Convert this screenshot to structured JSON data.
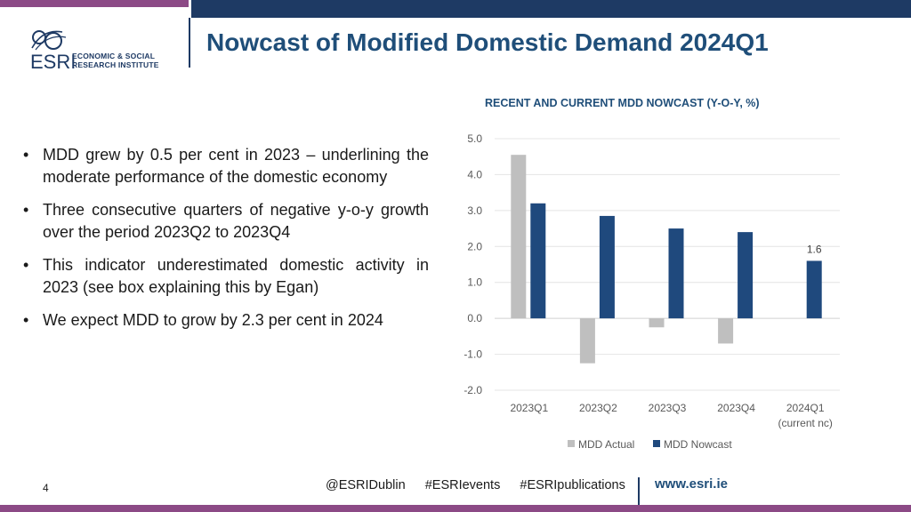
{
  "header": {
    "title": "Nowcast of Modified Domestic Demand 2024Q1",
    "logo_word": "ESRI",
    "logo_sub_1": "ECONOMIC & SOCIAL",
    "logo_sub_2": "RESEARCH INSTITUTE"
  },
  "bullets": [
    "MDD grew by 0.5 per cent in 2023 – underlining the moderate performance of the domestic economy",
    "Three consecutive quarters of negative y-o-y growth over the period 2023Q2 to 2023Q4",
    "This indicator underestimated domestic activity in 2023 (see box explaining this by Egan)",
    "We expect MDD to grow by 2.3 per cent in 2024"
  ],
  "chart_data": {
    "type": "bar",
    "title": "RECENT AND CURRENT MDD NOWCAST (Y-O-Y, %)",
    "categories": [
      "2023Q1",
      "2023Q2",
      "2023Q3",
      "2023Q4",
      "2024Q1"
    ],
    "category_sublabels": [
      "",
      "",
      "",
      "",
      "(current nc)"
    ],
    "series": [
      {
        "name": "MDD Actual",
        "color": "#bfbfbf",
        "values": [
          4.55,
          -1.25,
          -0.25,
          -0.7,
          null
        ]
      },
      {
        "name": "MDD Nowcast",
        "color": "#1f497d",
        "values": [
          3.2,
          2.85,
          2.5,
          2.4,
          1.6
        ]
      }
    ],
    "data_labels": [
      {
        "category": "2024Q1",
        "series": "MDD Nowcast",
        "text": "1.6"
      }
    ],
    "yticks": [
      "5.0",
      "4.0",
      "3.0",
      "2.0",
      "1.0",
      "0.0",
      "-1.0",
      "-2.0"
    ],
    "ylim": [
      -2,
      5
    ],
    "grid": true,
    "legend": "bottom"
  },
  "footer": {
    "handles": [
      "@ESRIDublin",
      "#ESRIevents",
      "#ESRIpublications"
    ],
    "url": "www.esri.ie",
    "page_number": "4"
  }
}
